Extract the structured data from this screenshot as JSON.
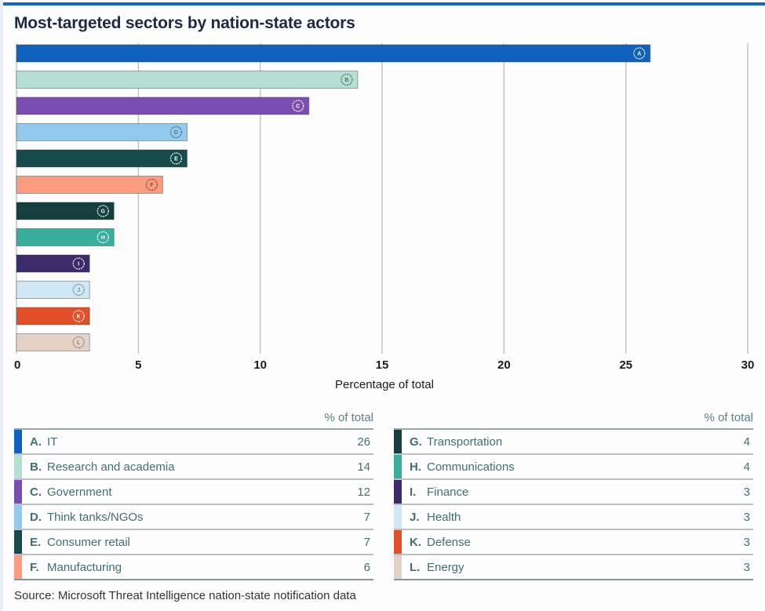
{
  "title": "Most-targeted sectors by nation-state actors",
  "source": "Source: Microsoft Threat Intelligence nation-state notification data",
  "legend": {
    "header": "% of total",
    "left": [
      {
        "letter": "A.",
        "label": "IT",
        "value": "26",
        "color": "#0f62be"
      },
      {
        "letter": "B.",
        "label": "Research and academia",
        "value": "14",
        "color": "#b6ded3"
      },
      {
        "letter": "C.",
        "label": "Government",
        "value": "12",
        "color": "#7a4db0"
      },
      {
        "letter": "D.",
        "label": "Think tanks/NGOs",
        "value": "7",
        "color": "#92c9ec"
      },
      {
        "letter": "E.",
        "label": "Consumer retail",
        "value": "7",
        "color": "#174b4b"
      },
      {
        "letter": "F.",
        "label": "Manufacturing",
        "value": "6",
        "color": "#fb9b80"
      }
    ],
    "right": [
      {
        "letter": "G.",
        "label": "Transportation",
        "value": "4",
        "color": "#153f3f"
      },
      {
        "letter": "H.",
        "label": "Communications",
        "value": "4",
        "color": "#3aae9c"
      },
      {
        "letter": "I.",
        "label": "Finance",
        "value": "3",
        "color": "#3d2a6a"
      },
      {
        "letter": "J.",
        "label": "Health",
        "value": "3",
        "color": "#cfe7f7"
      },
      {
        "letter": "K.",
        "label": "Defense",
        "value": "3",
        "color": "#e2502a"
      },
      {
        "letter": "L.",
        "label": "Energy",
        "value": "3",
        "color": "#e3d2c6"
      }
    ]
  },
  "chart_data": {
    "type": "bar",
    "orientation": "horizontal",
    "title": "Most-targeted sectors by nation-state actors",
    "xlabel": "Percentage of total",
    "ylabel": "",
    "xlim": [
      0,
      30
    ],
    "xticks": [
      0,
      5,
      10,
      15,
      20,
      25,
      30
    ],
    "grid": true,
    "legend": "bottom",
    "categories": [
      "A",
      "B",
      "C",
      "D",
      "E",
      "F",
      "G",
      "H",
      "I",
      "J",
      "K",
      "L"
    ],
    "category_names": [
      "IT",
      "Research and academia",
      "Government",
      "Think tanks/NGOs",
      "Consumer retail",
      "Manufacturing",
      "Transportation",
      "Communications",
      "Finance",
      "Health",
      "Defense",
      "Energy"
    ],
    "values": [
      26,
      14,
      12,
      7,
      7,
      6,
      4,
      4,
      3,
      3,
      3,
      3
    ],
    "colors": [
      "#0f62be",
      "#b6ded3",
      "#7a4db0",
      "#92c9ec",
      "#174b4b",
      "#fb9b80",
      "#153f3f",
      "#3aae9c",
      "#3d2a6a",
      "#cfe7f7",
      "#e2502a",
      "#e3d2c6"
    ],
    "label_colors": [
      "#ffffff",
      "#4d6f6a",
      "#ffffff",
      "#4d6f8a",
      "#ffffff",
      "#8a4a3a",
      "#ffffff",
      "#ffffff",
      "#ffffff",
      "#6a8aa0",
      "#ffffff",
      "#8a7a70"
    ]
  }
}
